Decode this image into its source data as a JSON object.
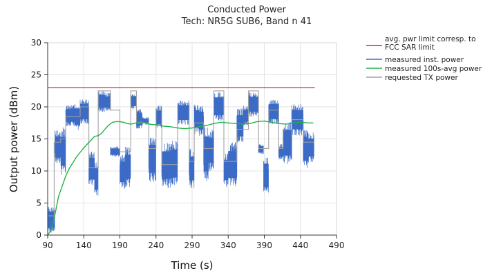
{
  "chart_data": {
    "type": "line",
    "title": "Conducted Power",
    "subtitle": "Tech: NR5G SUB6, Band n 41",
    "xlabel": "Time (s)",
    "ylabel": "Output power (dBm)",
    "xlim": [
      90,
      490
    ],
    "ylim": [
      0,
      30
    ],
    "xticks": [
      90,
      140,
      190,
      240,
      290,
      340,
      390,
      440,
      490
    ],
    "yticks": [
      0,
      5,
      10,
      15,
      20,
      25,
      30
    ],
    "grid": true,
    "legend_position": "right",
    "colors": {
      "limit": "#e8202a",
      "measured_inst": "#3b6bc6",
      "avg_100s": "#1fb24a",
      "requested": "#a0a0a0"
    },
    "series": [
      {
        "name": "avg. pwr limit corresp. to FCC SAR limit",
        "kind": "limit",
        "x": [
          90,
          460
        ],
        "y": [
          23,
          23
        ]
      },
      {
        "name": "measured inst. power",
        "kind": "band",
        "segments": [
          {
            "x0": 90,
            "x1": 100,
            "lo": 0.3,
            "hi": 4.5
          },
          {
            "x0": 100,
            "x1": 108,
            "lo": 11,
            "hi": 16.5
          },
          {
            "x0": 108,
            "x1": 115,
            "lo": 9.3,
            "hi": 16.8
          },
          {
            "x0": 115,
            "x1": 127,
            "lo": 17,
            "hi": 20.3
          },
          {
            "x0": 127,
            "x1": 135,
            "lo": 16.3,
            "hi": 20.6
          },
          {
            "x0": 135,
            "x1": 147,
            "lo": 17.3,
            "hi": 21.2
          },
          {
            "x0": 147,
            "x1": 155,
            "lo": 7.5,
            "hi": 13.2
          },
          {
            "x0": 155,
            "x1": 160,
            "lo": 6,
            "hi": 11.5
          },
          {
            "x0": 160,
            "x1": 170,
            "lo": 19.2,
            "hi": 22.5
          },
          {
            "x0": 170,
            "x1": 177,
            "lo": 19.3,
            "hi": 22.2
          },
          {
            "x0": 177,
            "x1": 190,
            "lo": 12.2,
            "hi": 13.8
          },
          {
            "x0": 190,
            "x1": 197,
            "lo": 7.2,
            "hi": 12.5
          },
          {
            "x0": 197,
            "x1": 205,
            "lo": 7.5,
            "hi": 13.8
          },
          {
            "x0": 205,
            "x1": 213,
            "lo": 19.6,
            "hi": 22.2
          },
          {
            "x0": 213,
            "x1": 221,
            "lo": 16.5,
            "hi": 19.7
          },
          {
            "x0": 221,
            "x1": 230,
            "lo": 17.2,
            "hi": 18.4
          },
          {
            "x0": 230,
            "x1": 240,
            "lo": 8.3,
            "hi": 15.5
          },
          {
            "x0": 240,
            "x1": 248,
            "lo": 16.5,
            "hi": 20.3
          },
          {
            "x0": 248,
            "x1": 260,
            "lo": 7.3,
            "hi": 14.5
          },
          {
            "x0": 260,
            "x1": 270,
            "lo": 7.5,
            "hi": 14.8
          },
          {
            "x0": 270,
            "x1": 286,
            "lo": 17.2,
            "hi": 21
          },
          {
            "x0": 286,
            "x1": 293,
            "lo": 7.3,
            "hi": 13.5
          },
          {
            "x0": 293,
            "x1": 300,
            "lo": 15.8,
            "hi": 20.4
          },
          {
            "x0": 300,
            "x1": 306,
            "lo": 15.5,
            "hi": 20.2
          },
          {
            "x0": 306,
            "x1": 313,
            "lo": 8.1,
            "hi": 17.2
          },
          {
            "x0": 313,
            "x1": 320,
            "lo": 10,
            "hi": 16.5
          },
          {
            "x0": 320,
            "x1": 334,
            "lo": 17.8,
            "hi": 22.4
          },
          {
            "x0": 334,
            "x1": 340,
            "lo": 7.5,
            "hi": 12.8
          },
          {
            "x0": 340,
            "x1": 352,
            "lo": 7.5,
            "hi": 14.5
          },
          {
            "x0": 352,
            "x1": 361,
            "lo": 14.3,
            "hi": 19.8
          },
          {
            "x0": 361,
            "x1": 368,
            "lo": 17.1,
            "hi": 20.2
          },
          {
            "x0": 368,
            "x1": 382,
            "lo": 18.5,
            "hi": 22.3
          },
          {
            "x0": 382,
            "x1": 389,
            "lo": 12.6,
            "hi": 14.2
          },
          {
            "x0": 389,
            "x1": 396,
            "lo": 6.3,
            "hi": 12.3
          },
          {
            "x0": 396,
            "x1": 410,
            "lo": 17.3,
            "hi": 21.2
          },
          {
            "x0": 410,
            "x1": 416,
            "lo": 11.8,
            "hi": 14.2
          },
          {
            "x0": 416,
            "x1": 428,
            "lo": 11.1,
            "hi": 17.7
          },
          {
            "x0": 428,
            "x1": 444,
            "lo": 15.5,
            "hi": 20.5
          },
          {
            "x0": 444,
            "x1": 451,
            "lo": 10.3,
            "hi": 16.6
          },
          {
            "x0": 451,
            "x1": 459,
            "lo": 11.3,
            "hi": 16
          }
        ]
      },
      {
        "name": "measured 100s-avg power",
        "kind": "line",
        "x": [
          90,
          95,
          100,
          105,
          110,
          115,
          120,
          125,
          130,
          135,
          140,
          145,
          150,
          155,
          160,
          165,
          170,
          175,
          180,
          185,
          190,
          195,
          200,
          205,
          210,
          215,
          220,
          230,
          240,
          250,
          260,
          270,
          280,
          290,
          300,
          310,
          320,
          330,
          340,
          350,
          360,
          370,
          380,
          390,
          400,
          410,
          420,
          430,
          440,
          450,
          458
        ],
        "y": [
          0,
          0.8,
          3.2,
          6.0,
          7.6,
          9.2,
          10.4,
          11.3,
          12.2,
          12.9,
          13.6,
          14.2,
          14.8,
          15.4,
          15.5,
          15.9,
          16.6,
          17.2,
          17.6,
          17.7,
          17.7,
          17.6,
          17.4,
          17.3,
          17.4,
          17.6,
          17.7,
          17.3,
          17.2,
          17.0,
          16.9,
          16.7,
          16.6,
          16.7,
          16.9,
          17.1,
          17.4,
          17.6,
          17.5,
          17.4,
          17.3,
          17.4,
          17.7,
          17.8,
          17.6,
          17.4,
          17.3,
          17.5,
          17.6,
          17.5,
          17.5
        ]
      },
      {
        "name": "requested TX power",
        "kind": "step",
        "x": [
          91,
          99,
          108,
          115,
          135,
          147,
          160,
          177,
          190,
          205,
          213,
          230,
          240,
          248,
          270,
          286,
          293,
          306,
          320,
          334,
          352,
          368,
          382,
          396,
          410,
          416,
          428,
          444,
          451
        ],
        "y": [
          3,
          14.5,
          15,
          18.5,
          20,
          10.5,
          22.5,
          19.5,
          13,
          22.5,
          17.5,
          13.5,
          19.5,
          11,
          20.5,
          11.5,
          17.5,
          13.5,
          22.5,
          11.5,
          16.5,
          22.5,
          13.5,
          19.5,
          13.5,
          16.5,
          18,
          14.5,
          14.5
        ],
        "x_end": 451
      }
    ]
  }
}
